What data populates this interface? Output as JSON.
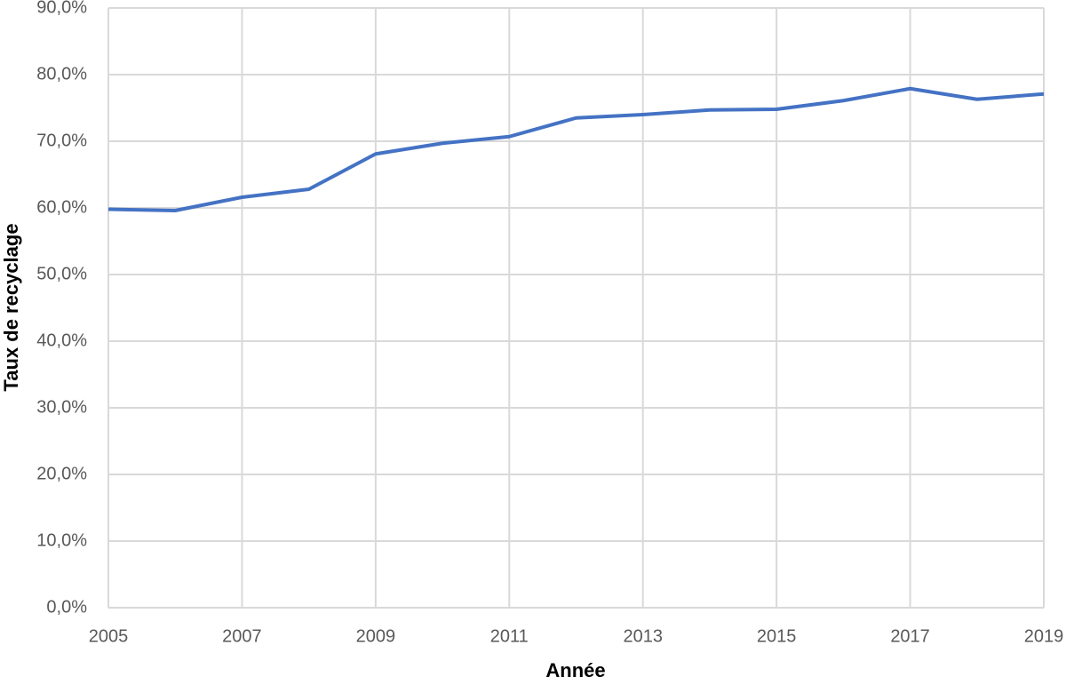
{
  "chart_data": {
    "type": "line",
    "x_label": "Année",
    "y_label": "Taux de recyclage",
    "x": [
      2005,
      2006,
      2007,
      2008,
      2009,
      2010,
      2011,
      2012,
      2013,
      2014,
      2015,
      2016,
      2017,
      2018,
      2019
    ],
    "series": [
      {
        "name": "Taux de recyclage",
        "color": "#4472c4",
        "values": [
          59.8,
          59.6,
          61.6,
          62.8,
          68.1,
          69.7,
          70.7,
          73.5,
          74.0,
          74.7,
          74.8,
          76.1,
          77.9,
          76.3,
          77.1
        ]
      }
    ],
    "xlim": [
      2005,
      2019
    ],
    "xticks": [
      2005,
      2007,
      2009,
      2011,
      2013,
      2015,
      2017,
      2019
    ],
    "ylim": [
      0,
      90
    ],
    "yticks": [
      {
        "value": 0,
        "label": "0,0%"
      },
      {
        "value": 10,
        "label": "10,0%"
      },
      {
        "value": 20,
        "label": "20,0%"
      },
      {
        "value": 30,
        "label": "30,0%"
      },
      {
        "value": 40,
        "label": "40,0%"
      },
      {
        "value": 50,
        "label": "50,0%"
      },
      {
        "value": 60,
        "label": "60,0%"
      },
      {
        "value": 70,
        "label": "70,0%"
      },
      {
        "value": 80,
        "label": "80,0%"
      },
      {
        "value": 90,
        "label": "90,0%"
      }
    ],
    "grid": true
  }
}
